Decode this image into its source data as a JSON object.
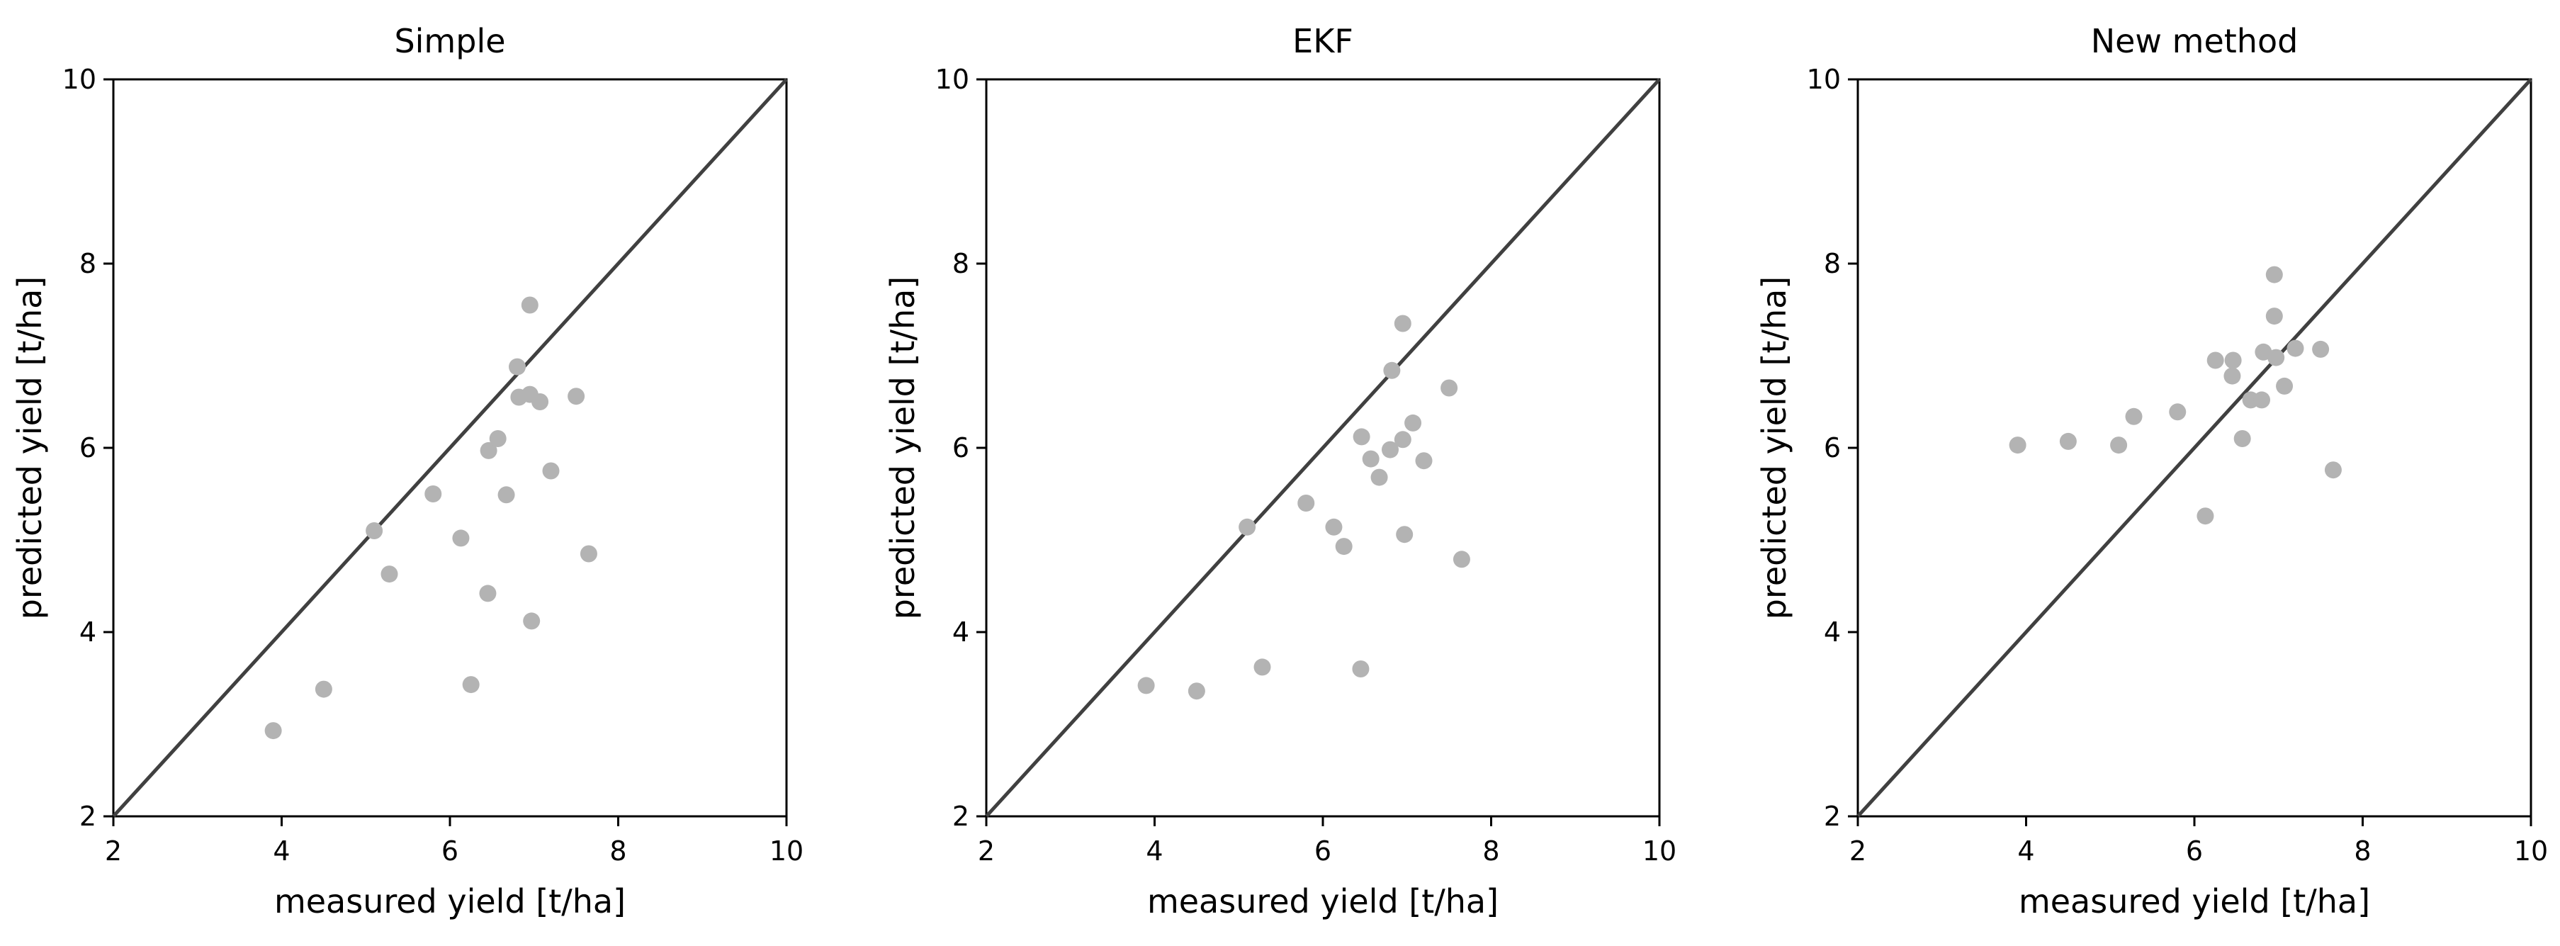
{
  "colors": {
    "point": "#b3b3b3",
    "identity_line": "#404040",
    "axes": "#000000"
  },
  "chart_data": [
    {
      "type": "scatter",
      "title": "Simple",
      "xlabel": "measured yield [t/ha]",
      "ylabel": "predicted yield [t/ha]",
      "xlim": [
        2,
        10
      ],
      "ylim": [
        2,
        10
      ],
      "xticks": [
        2,
        4,
        6,
        8,
        10
      ],
      "yticks": [
        2,
        4,
        6,
        8,
        10
      ],
      "grid": false,
      "reference_line": "y = x",
      "x": [
        3.9,
        4.5,
        5.1,
        5.28,
        5.8,
        6.13,
        6.25,
        6.45,
        6.46,
        6.57,
        6.67,
        6.8,
        6.82,
        6.95,
        6.95,
        6.97,
        7.07,
        7.2,
        7.5,
        7.65
      ],
      "y": [
        2.93,
        3.38,
        5.1,
        4.63,
        5.5,
        5.02,
        3.43,
        4.42,
        5.97,
        6.1,
        5.49,
        6.88,
        6.55,
        7.55,
        6.58,
        4.12,
        6.5,
        5.75,
        6.56,
        4.85
      ]
    },
    {
      "type": "scatter",
      "title": "EKF",
      "xlabel": "measured yield [t/ha]",
      "ylabel": "predicted yield [t/ha]",
      "xlim": [
        2,
        10
      ],
      "ylim": [
        2,
        10
      ],
      "xticks": [
        2,
        4,
        6,
        8,
        10
      ],
      "yticks": [
        2,
        4,
        6,
        8,
        10
      ],
      "grid": false,
      "reference_line": "y = x",
      "x": [
        3.9,
        4.5,
        5.1,
        5.28,
        5.8,
        6.13,
        6.25,
        6.45,
        6.46,
        6.57,
        6.67,
        6.8,
        6.82,
        6.95,
        6.95,
        6.97,
        7.07,
        7.2,
        7.5,
        7.65
      ],
      "y": [
        3.42,
        3.36,
        5.14,
        3.62,
        5.4,
        5.14,
        4.93,
        3.6,
        6.12,
        5.88,
        5.68,
        5.98,
        6.84,
        7.35,
        6.09,
        5.06,
        6.27,
        5.86,
        6.65,
        4.79
      ]
    },
    {
      "type": "scatter",
      "title": "New method",
      "xlabel": "measured yield [t/ha]",
      "ylabel": "predicted yield [t/ha]",
      "xlim": [
        2,
        10
      ],
      "ylim": [
        2,
        10
      ],
      "xticks": [
        2,
        4,
        6,
        8,
        10
      ],
      "yticks": [
        2,
        4,
        6,
        8,
        10
      ],
      "grid": false,
      "reference_line": "y = x",
      "x": [
        3.9,
        4.5,
        5.1,
        5.28,
        5.8,
        6.13,
        6.25,
        6.45,
        6.46,
        6.57,
        6.67,
        6.8,
        6.82,
        6.95,
        6.95,
        6.97,
        7.07,
        7.2,
        7.5,
        7.65
      ],
      "y": [
        6.03,
        6.07,
        6.03,
        6.34,
        6.39,
        5.26,
        6.95,
        6.78,
        6.95,
        6.1,
        6.52,
        6.52,
        7.04,
        7.88,
        7.43,
        6.98,
        6.67,
        7.08,
        7.07,
        5.76
      ]
    }
  ]
}
